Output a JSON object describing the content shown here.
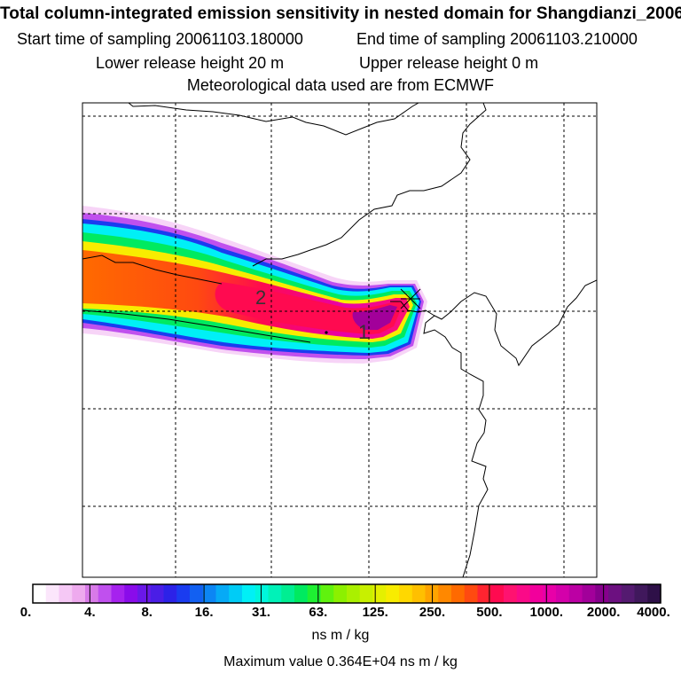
{
  "title": {
    "main": "Total column-integrated emission sensitivity in nested domain for Shangdianzi_2006",
    "start_label": "Start time of sampling 20061103.180000",
    "end_label": "End time of sampling 20061103.210000",
    "lower_label": "Lower release height   20 m",
    "upper_label": "Upper release height    0 m",
    "met_label": "Meteorological data used are from ECMWF"
  },
  "map": {
    "marker_labels": [
      "1",
      "2"
    ],
    "colors": {
      "border": "#000000",
      "grid": "#000000",
      "coast": "#000000"
    }
  },
  "legend": {
    "ticks": [
      "0.",
      "4.",
      "8.",
      "16.",
      "31.",
      "63.",
      "125.",
      "250.",
      "500.",
      "1000.",
      "2000.",
      "4000."
    ],
    "tick_values": [
      0,
      4,
      8,
      16,
      31,
      63,
      125,
      250,
      500,
      1000,
      2000,
      4000
    ],
    "colors": [
      "#ffffff",
      "#fbe6fb",
      "#f5c8f5",
      "#eeaaee",
      "#d87ae8",
      "#c050ee",
      "#a622ee",
      "#8a0cea",
      "#6a18e8",
      "#4a1ee6",
      "#2c22e8",
      "#1a3cf0",
      "#1260f2",
      "#0c86f4",
      "#06aaf6",
      "#00ccf6",
      "#00f0f6",
      "#00f6dc",
      "#00f2b8",
      "#00ee92",
      "#00ea60",
      "#1ef032",
      "#60f20e",
      "#8cf000",
      "#aaf000",
      "#c8f000",
      "#e4f000",
      "#f8ec00",
      "#ffd800",
      "#ffc000",
      "#ffa400",
      "#ff8800",
      "#ff6a00",
      "#ff4a10",
      "#ff2430",
      "#ff0a50",
      "#ff1270",
      "#fa0a88",
      "#f2009c",
      "#e800a8",
      "#d400aa",
      "#bc00a4",
      "#a2009a",
      "#86008c",
      "#6c1080",
      "#541a70",
      "#40185c",
      "#2e1048"
    ],
    "unit": "ns m / kg",
    "max_value": "Maximum value  0.364E+04 ns m / kg"
  }
}
